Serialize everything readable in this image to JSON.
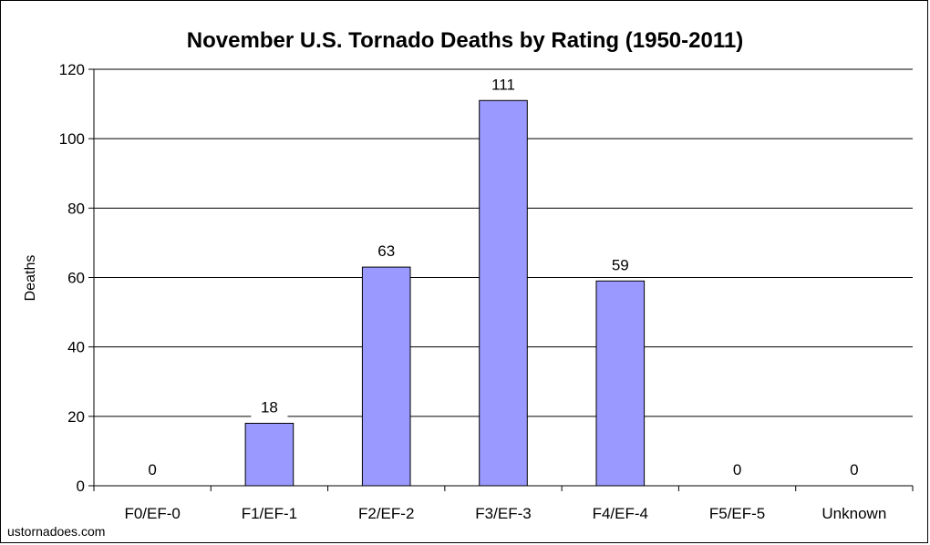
{
  "chart_data": {
    "type": "bar",
    "title": "November U.S. Tornado Deaths by Rating (1950-2011)",
    "xlabel": "",
    "ylabel": "Deaths",
    "categories": [
      "F0/EF-0",
      "F1/EF-1",
      "F2/EF-2",
      "F3/EF-3",
      "F4/EF-4",
      "F5/EF-5",
      "Unknown"
    ],
    "values": [
      0,
      18,
      63,
      111,
      59,
      0,
      0
    ],
    "ylim": [
      0,
      120
    ],
    "yticks": [
      0,
      20,
      40,
      60,
      80,
      100,
      120
    ],
    "grid": true,
    "legend": "none",
    "bar_color": "#9999ff",
    "bar_edge_color": "#000000"
  },
  "credit": "ustornadoes.com"
}
